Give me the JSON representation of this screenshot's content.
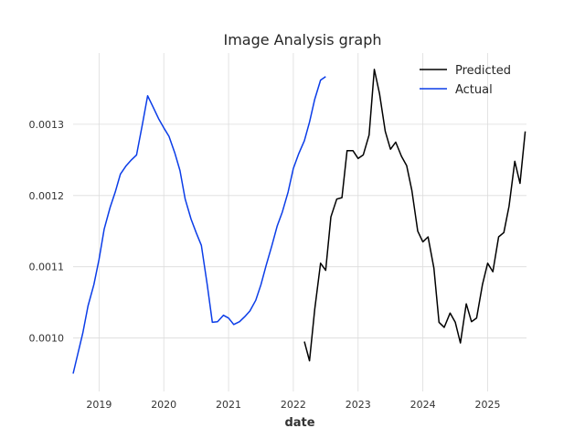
{
  "chart_data": {
    "type": "line",
    "title": "Image Analysis graph",
    "xlabel": "date",
    "ylabel": "",
    "xlim": [
      2018.6,
      2025.6
    ],
    "ylim": [
      0.000925,
      0.0014
    ],
    "xticks": [
      2019,
      2020,
      2021,
      2022,
      2023,
      2024,
      2025
    ],
    "xtick_labels": [
      "2019",
      "2020",
      "2021",
      "2022",
      "2023",
      "2024",
      "2025"
    ],
    "yticks": [
      0.001,
      0.0011,
      0.0012,
      0.0013
    ],
    "ytick_labels": [
      "0.0010",
      "0.0011",
      "0.0012",
      "0.0013"
    ],
    "grid": true,
    "legend_position": "top-right",
    "series": [
      {
        "name": "Predicted",
        "color": "#000000",
        "x": [
          2022.17,
          2022.25,
          2022.33,
          2022.42,
          2022.5,
          2022.58,
          2022.67,
          2022.75,
          2022.83,
          2022.92,
          2023.0,
          2023.08,
          2023.17,
          2023.25,
          2023.33,
          2023.42,
          2023.5,
          2023.58,
          2023.67,
          2023.75,
          2023.83,
          2023.92,
          2024.0,
          2024.08,
          2024.17,
          2024.25,
          2024.33,
          2024.42,
          2024.5,
          2024.58,
          2024.67,
          2024.75,
          2024.83,
          2024.92,
          2025.0,
          2025.08,
          2025.17,
          2025.25,
          2025.33,
          2025.42,
          2025.5,
          2025.58
        ],
        "y": [
          0.000995,
          0.000968,
          0.00104,
          0.001105,
          0.001095,
          0.00117,
          0.001195,
          0.001197,
          0.001263,
          0.001263,
          0.001252,
          0.001257,
          0.001285,
          0.001377,
          0.001343,
          0.00129,
          0.001265,
          0.001275,
          0.001255,
          0.001242,
          0.001207,
          0.00115,
          0.001135,
          0.001142,
          0.001098,
          0.001022,
          0.001015,
          0.001035,
          0.001022,
          0.000993,
          0.001048,
          0.001023,
          0.001028,
          0.001075,
          0.001105,
          0.001093,
          0.001142,
          0.001148,
          0.001185,
          0.001248,
          0.001217,
          0.00129
        ]
      },
      {
        "name": "Actual",
        "color": "#0b3de8",
        "x": [
          2018.6,
          2018.67,
          2018.75,
          2018.83,
          2018.92,
          2019.0,
          2019.08,
          2019.17,
          2019.25,
          2019.33,
          2019.42,
          2019.5,
          2019.58,
          2019.67,
          2019.75,
          2019.83,
          2019.92,
          2020.0,
          2020.08,
          2020.17,
          2020.25,
          2020.33,
          2020.42,
          2020.5,
          2020.58,
          2020.67,
          2020.75,
          2020.83,
          2020.92,
          2021.0,
          2021.08,
          2021.17,
          2021.25,
          2021.33,
          2021.42,
          2021.5,
          2021.58,
          2021.67,
          2021.75,
          2021.83,
          2021.92,
          2022.0,
          2022.08,
          2022.17,
          2022.25,
          2022.33,
          2022.42,
          2022.5
        ],
        "y": [
          0.00095,
          0.000977,
          0.001007,
          0.001045,
          0.001075,
          0.00111,
          0.001153,
          0.001183,
          0.001205,
          0.00123,
          0.001242,
          0.00125,
          0.001257,
          0.0013,
          0.00134,
          0.001325,
          0.001308,
          0.001295,
          0.001283,
          0.00126,
          0.001235,
          0.001195,
          0.001167,
          0.001148,
          0.00113,
          0.001075,
          0.001022,
          0.001023,
          0.001032,
          0.001028,
          0.001019,
          0.001023,
          0.00103,
          0.001038,
          0.001053,
          0.001075,
          0.001102,
          0.00113,
          0.001157,
          0.001177,
          0.001205,
          0.001238,
          0.001258,
          0.001277,
          0.001303,
          0.001335,
          0.001362,
          0.001367
        ]
      }
    ]
  }
}
